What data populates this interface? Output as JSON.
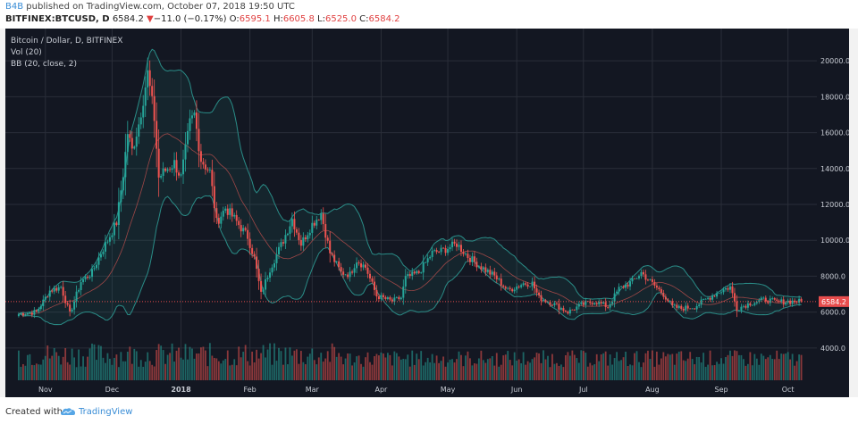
{
  "header": {
    "author": "B4B",
    "published_text": "published on TradingView.com, October 07, 2018 19:50 UTC"
  },
  "quote": {
    "symbol": "BITFINEX:BTCUSD, D",
    "last": "6584.2",
    "change_arrow": "▼",
    "change": "−11.0 (−0.17%)",
    "o_label": "O:",
    "o_value": "6595.1",
    "h_label": "H:",
    "h_value": "6605.8",
    "l_label": "L:",
    "l_value": "6525.0",
    "c_label": "C:",
    "c_value": "6584.2"
  },
  "legend": {
    "title": "Bitcoin / Dollar, D, BITFINEX",
    "vol": "Vol (20)",
    "bb": "BB (20, close, 2)"
  },
  "footer": {
    "created_with": "Created with",
    "brand": "TradingView"
  },
  "colors": {
    "background": "#131722",
    "up": "#26a69a",
    "down": "#ef5350",
    "bb_band": "#2a8c87",
    "bb_basis": "#c0504d",
    "price_line": "#e84d4d"
  },
  "chart_data": {
    "type": "candlestick",
    "title": "Bitcoin / Dollar, D, BITFINEX",
    "x_ticks": [
      "Nov",
      "Dec",
      "2018",
      "Feb",
      "Mar",
      "Apr",
      "May",
      "Jun",
      "Jul",
      "Aug",
      "Sep",
      "Oct"
    ],
    "y_ticks": [
      4000.0,
      6000.0,
      8000.0,
      10000.0,
      12000.0,
      14000.0,
      16000.0,
      18000.0,
      20000.0
    ],
    "ylim": [
      2200,
      21800
    ],
    "last_price": 6584.2,
    "last_price_label": "6584.2",
    "grid": true,
    "indicators": [
      "Vol (20)",
      "BB (20, close, 2)"
    ],
    "close_path": [
      {
        "date": "2017-10-20",
        "close": 5900
      },
      {
        "date": "2017-10-28",
        "close": 6000
      },
      {
        "date": "2017-11-03",
        "close": 7200
      },
      {
        "date": "2017-11-08",
        "close": 7400
      },
      {
        "date": "2017-11-12",
        "close": 5900
      },
      {
        "date": "2017-11-17",
        "close": 7700
      },
      {
        "date": "2017-11-22",
        "close": 8200
      },
      {
        "date": "2017-11-26",
        "close": 9300
      },
      {
        "date": "2017-11-29",
        "close": 10000
      },
      {
        "date": "2017-12-03",
        "close": 11000
      },
      {
        "date": "2017-12-06",
        "close": 13700
      },
      {
        "date": "2017-12-08",
        "close": 16000
      },
      {
        "date": "2017-12-10",
        "close": 15000
      },
      {
        "date": "2017-12-13",
        "close": 16500
      },
      {
        "date": "2017-12-17",
        "close": 19300
      },
      {
        "date": "2017-12-20",
        "close": 16800
      },
      {
        "date": "2017-12-22",
        "close": 13500
      },
      {
        "date": "2017-12-25",
        "close": 13900
      },
      {
        "date": "2017-12-29",
        "close": 14300
      },
      {
        "date": "2018-01-01",
        "close": 13500
      },
      {
        "date": "2018-01-05",
        "close": 16500
      },
      {
        "date": "2018-01-07",
        "close": 17000
      },
      {
        "date": "2018-01-10",
        "close": 14500
      },
      {
        "date": "2018-01-14",
        "close": 13800
      },
      {
        "date": "2018-01-17",
        "close": 11000
      },
      {
        "date": "2018-01-21",
        "close": 11800
      },
      {
        "date": "2018-01-25",
        "close": 11200
      },
      {
        "date": "2018-01-31",
        "close": 10200
      },
      {
        "date": "2018-02-03",
        "close": 9000
      },
      {
        "date": "2018-02-06",
        "close": 7000
      },
      {
        "date": "2018-02-10",
        "close": 8400
      },
      {
        "date": "2018-02-16",
        "close": 10000
      },
      {
        "date": "2018-02-20",
        "close": 11200
      },
      {
        "date": "2018-02-24",
        "close": 9800
      },
      {
        "date": "2018-03-01",
        "close": 10900
      },
      {
        "date": "2018-03-05",
        "close": 11500
      },
      {
        "date": "2018-03-09",
        "close": 9300
      },
      {
        "date": "2018-03-14",
        "close": 8200
      },
      {
        "date": "2018-03-18",
        "close": 8100
      },
      {
        "date": "2018-03-21",
        "close": 8900
      },
      {
        "date": "2018-03-25",
        "close": 8500
      },
      {
        "date": "2018-03-30",
        "close": 6900
      },
      {
        "date": "2018-04-06",
        "close": 6600
      },
      {
        "date": "2018-04-10",
        "close": 6800
      },
      {
        "date": "2018-04-12",
        "close": 7900
      },
      {
        "date": "2018-04-18",
        "close": 8200
      },
      {
        "date": "2018-04-24",
        "close": 9300
      },
      {
        "date": "2018-04-28",
        "close": 9400
      },
      {
        "date": "2018-05-05",
        "close": 9800
      },
      {
        "date": "2018-05-10",
        "close": 9100
      },
      {
        "date": "2018-05-15",
        "close": 8600
      },
      {
        "date": "2018-05-22",
        "close": 8000
      },
      {
        "date": "2018-05-28",
        "close": 7200
      },
      {
        "date": "2018-06-04",
        "close": 7600
      },
      {
        "date": "2018-06-08",
        "close": 7600
      },
      {
        "date": "2018-06-11",
        "close": 6800
      },
      {
        "date": "2018-06-17",
        "close": 6500
      },
      {
        "date": "2018-06-24",
        "close": 6000
      },
      {
        "date": "2018-06-30",
        "close": 6400
      },
      {
        "date": "2018-07-06",
        "close": 6600
      },
      {
        "date": "2018-07-12",
        "close": 6300
      },
      {
        "date": "2018-07-17",
        "close": 7300
      },
      {
        "date": "2018-07-23",
        "close": 7700
      },
      {
        "date": "2018-07-27",
        "close": 8200
      },
      {
        "date": "2018-07-31",
        "close": 7700
      },
      {
        "date": "2018-08-06",
        "close": 7000
      },
      {
        "date": "2018-08-10",
        "close": 6300
      },
      {
        "date": "2018-08-14",
        "close": 6200
      },
      {
        "date": "2018-08-20",
        "close": 6300
      },
      {
        "date": "2018-08-25",
        "close": 6700
      },
      {
        "date": "2018-09-01",
        "close": 7200
      },
      {
        "date": "2018-09-05",
        "close": 7400
      },
      {
        "date": "2018-09-08",
        "close": 6200
      },
      {
        "date": "2018-09-14",
        "close": 6500
      },
      {
        "date": "2018-09-21",
        "close": 6700
      },
      {
        "date": "2018-09-26",
        "close": 6550
      },
      {
        "date": "2018-10-01",
        "close": 6600
      },
      {
        "date": "2018-10-07",
        "close": 6584
      }
    ]
  }
}
